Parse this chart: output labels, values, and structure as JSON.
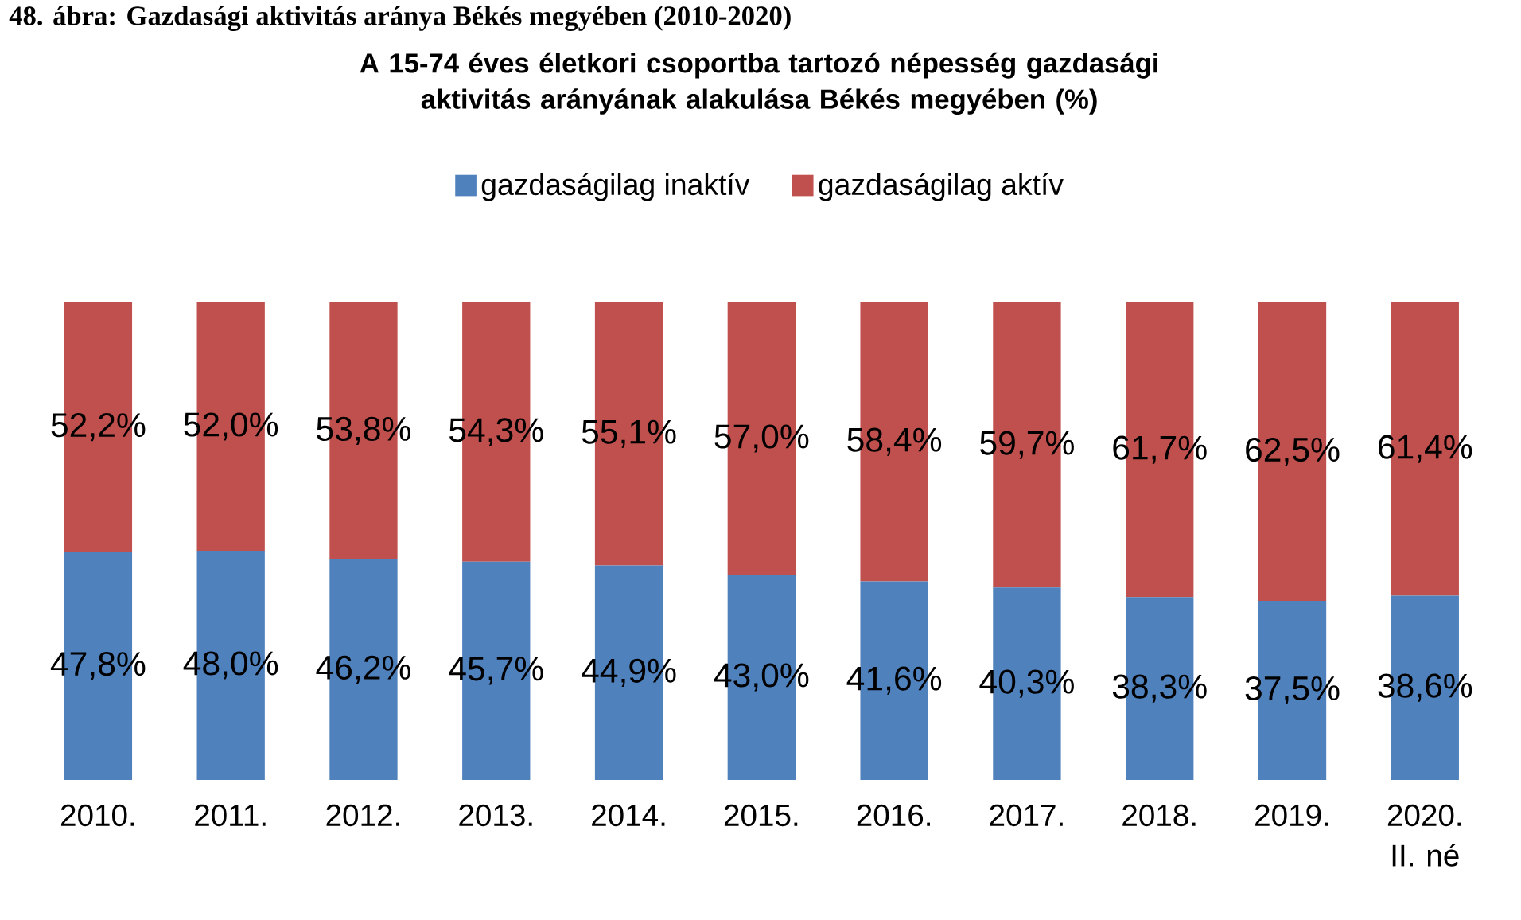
{
  "chart_data": {
    "type": "bar",
    "title": "A 15-74 éves életkori csoportba tartozó népesség gazdasági aktivitás arányának alakulása Békés megyében (%)",
    "annotations": [
      "48. ábra: Gazdasági aktivitás aránya Békés megyében (2010-2020)"
    ],
    "categories": [
      "2010.",
      "2011.",
      "2012.",
      "2013.",
      "2014.",
      "2015.",
      "2016.",
      "2017.",
      "2018.",
      "2019.",
      "2020. II. né"
    ],
    "stacked": true,
    "legend": "top",
    "series": [
      {
        "name": "gazdaságilag inaktív",
        "color": "#4f81bd",
        "values": [
          47.8,
          48.0,
          46.2,
          45.7,
          44.9,
          43.0,
          41.6,
          40.3,
          38.3,
          37.5,
          38.6
        ],
        "value_labels": [
          "47,8%",
          "48,0%",
          "46,2%",
          "45,7%",
          "44,9%",
          "43,0%",
          "41,6%",
          "40,3%",
          "38,3%",
          "37,5%",
          "38,6%"
        ]
      },
      {
        "name": "gazdaságilag aktív",
        "color": "#c0504d",
        "values": [
          52.2,
          52.0,
          53.8,
          54.3,
          55.1,
          57.0,
          58.4,
          59.7,
          61.7,
          62.5,
          61.4
        ],
        "value_labels": [
          "52,2%",
          "52,0%",
          "53,8%",
          "54,3%",
          "55,1%",
          "57,0%",
          "58,4%",
          "59,7%",
          "61,7%",
          "62,5%",
          "61,4%"
        ]
      }
    ]
  }
}
